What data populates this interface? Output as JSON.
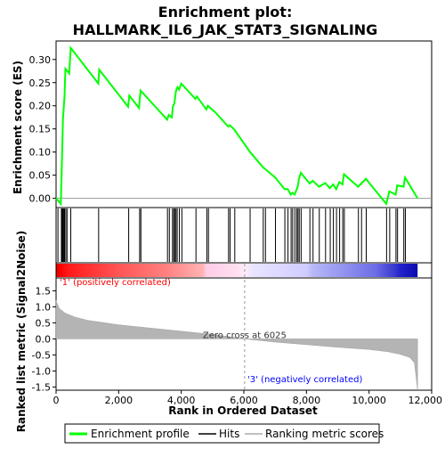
{
  "chart_data": {
    "type": "line",
    "title_line1": "Enrichment plot:",
    "title_line2": "HALLMARK_IL6_JAK_STAT3_SIGNALING",
    "top_panel": {
      "ylabel": "Enrichment score (ES)",
      "ylim": [
        -0.02,
        0.34
      ],
      "yticks": [
        "0.00",
        "0.05",
        "0.10",
        "0.15",
        "0.20",
        "0.25",
        "0.30"
      ],
      "ytick_values": [
        0.0,
        0.05,
        0.1,
        0.15,
        0.2,
        0.25,
        0.3
      ],
      "series_name": "Enrichment profile",
      "color": "#00ff00",
      "points": [
        [
          0,
          0.0
        ],
        [
          150,
          -0.012
        ],
        [
          175,
          0.05
        ],
        [
          200,
          0.11
        ],
        [
          220,
          0.17
        ],
        [
          270,
          0.22
        ],
        [
          300,
          0.28
        ],
        [
          420,
          0.27
        ],
        [
          470,
          0.325
        ],
        [
          1350,
          0.248
        ],
        [
          1380,
          0.278
        ],
        [
          2300,
          0.198
        ],
        [
          2340,
          0.222
        ],
        [
          2650,
          0.195
        ],
        [
          2700,
          0.233
        ],
        [
          3550,
          0.17
        ],
        [
          3600,
          0.18
        ],
        [
          3700,
          0.175
        ],
        [
          3730,
          0.198
        ],
        [
          3780,
          0.205
        ],
        [
          3830,
          0.232
        ],
        [
          3880,
          0.24
        ],
        [
          3930,
          0.235
        ],
        [
          4000,
          0.248
        ],
        [
          4450,
          0.215
        ],
        [
          4500,
          0.22
        ],
        [
          4800,
          0.192
        ],
        [
          4850,
          0.2
        ],
        [
          5100,
          0.185
        ],
        [
          5500,
          0.155
        ],
        [
          5550,
          0.158
        ],
        [
          5700,
          0.148
        ],
        [
          6200,
          0.1
        ],
        [
          6600,
          0.068
        ],
        [
          6700,
          0.062
        ],
        [
          7000,
          0.045
        ],
        [
          7300,
          0.02
        ],
        [
          7400,
          0.02
        ],
        [
          7500,
          0.008
        ],
        [
          7550,
          0.012
        ],
        [
          7620,
          0.008
        ],
        [
          7680,
          0.018
        ],
        [
          7720,
          0.025
        ],
        [
          7760,
          0.042
        ],
        [
          7820,
          0.055
        ],
        [
          8100,
          0.032
        ],
        [
          8200,
          0.038
        ],
        [
          8400,
          0.025
        ],
        [
          8600,
          0.033
        ],
        [
          8750,
          0.022
        ],
        [
          8850,
          0.03
        ],
        [
          8950,
          0.02
        ],
        [
          9050,
          0.035
        ],
        [
          9150,
          0.03
        ],
        [
          9200,
          0.052
        ],
        [
          9650,
          0.025
        ],
        [
          9750,
          0.032
        ],
        [
          9900,
          0.042
        ],
        [
          10550,
          -0.012
        ],
        [
          10650,
          0.015
        ],
        [
          10850,
          0.008
        ],
        [
          10900,
          0.028
        ],
        [
          11100,
          0.025
        ],
        [
          11150,
          0.045
        ],
        [
          11550,
          0.0
        ]
      ]
    },
    "hits": [
      60,
      170,
      190,
      215,
      240,
      270,
      310,
      350,
      470,
      1360,
      2320,
      2670,
      2710,
      3560,
      3620,
      3720,
      3760,
      3790,
      3830,
      3870,
      3940,
      4020,
      4470,
      4820,
      4870,
      5510,
      5560,
      5710,
      6200,
      6620,
      6690,
      7010,
      7310,
      7410,
      7510,
      7560,
      7630,
      7690,
      7730,
      7770,
      7830,
      8110,
      8210,
      8410,
      8610,
      8760,
      8860,
      8960,
      9060,
      9160,
      9210,
      9660,
      9760,
      9910,
      10560,
      10660,
      10860,
      10910,
      11110,
      11160
    ],
    "bottom_panel": {
      "ylabel": "Ranked list metric (Signal2Noise)",
      "xlabel": "Rank in Ordered Dataset",
      "ylim": [
        -1.6,
        1.9
      ],
      "yticks": [
        "-1.5",
        "-1.0",
        "-0.5",
        "0.0",
        "0.5",
        "1.0",
        "1.5"
      ],
      "ytick_values": [
        -1.5,
        -1.0,
        -0.5,
        0.0,
        0.5,
        1.0,
        1.5
      ],
      "xlim": [
        0,
        12000
      ],
      "xticks": [
        "0",
        "2,000",
        "4,000",
        "6,000",
        "8,000",
        "10,000",
        "12,000"
      ],
      "xtick_values": [
        0,
        2000,
        4000,
        6000,
        8000,
        10000,
        12000
      ],
      "metric_profile": [
        [
          0,
          1.2
        ],
        [
          100,
          0.95
        ],
        [
          300,
          0.8
        ],
        [
          600,
          0.68
        ],
        [
          1000,
          0.58
        ],
        [
          2000,
          0.44
        ],
        [
          3000,
          0.34
        ],
        [
          4000,
          0.24
        ],
        [
          5000,
          0.14
        ],
        [
          6025,
          0.0
        ],
        [
          7000,
          -0.1
        ],
        [
          8000,
          -0.18
        ],
        [
          9000,
          -0.26
        ],
        [
          10000,
          -0.33
        ],
        [
          10600,
          -0.4
        ],
        [
          11000,
          -0.48
        ],
        [
          11300,
          -0.58
        ],
        [
          11450,
          -0.75
        ],
        [
          11550,
          -1.6
        ]
      ],
      "zero_cross_label": "Zero cross at 6025",
      "zero_cross_x": 6025,
      "pos_label": "'1' (positively correlated)",
      "neg_label": "'3' (negatively correlated)",
      "pos_label_color": "#ff0000",
      "neg_label_color": "#0000ff"
    },
    "dataset_size": 11550,
    "heat_gradient": [
      [
        0,
        "#dd0000"
      ],
      [
        150,
        "#ff0000"
      ],
      [
        400,
        "#ff1a1a"
      ],
      [
        2000,
        "#ff5555"
      ],
      [
        3500,
        "#ff8080"
      ],
      [
        4700,
        "#ffb4b4"
      ],
      [
        4800,
        "#ffcde6"
      ],
      [
        5800,
        "#ffdff0"
      ],
      [
        6025,
        "#ffeef8"
      ],
      [
        6300,
        "#e8e4ff"
      ],
      [
        8000,
        "#d0ccff"
      ],
      [
        8200,
        "#b8b8f8"
      ],
      [
        9100,
        "#9696f0"
      ],
      [
        10200,
        "#6d6de6"
      ],
      [
        10800,
        "#3a3ad0"
      ],
      [
        11000,
        "#2222cc"
      ],
      [
        11550,
        "#0a0ab0"
      ]
    ],
    "legend": [
      {
        "label": "Enrichment profile",
        "color": "#00ff00"
      },
      {
        "label": "Hits",
        "color": "#000000"
      },
      {
        "label": "Ranking metric scores",
        "color": "#c0c0c0"
      }
    ]
  }
}
